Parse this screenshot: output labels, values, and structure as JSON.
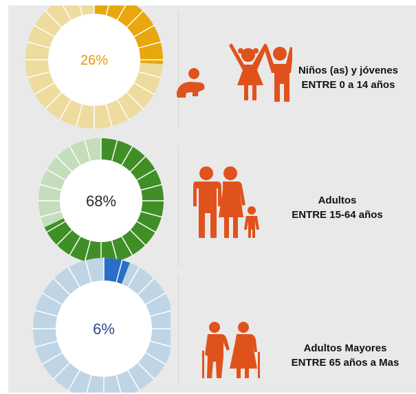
{
  "chart_data": [
    {
      "type": "pie",
      "name": "Niños (as) y jóvenes",
      "value": 26,
      "value_label": "26%",
      "label_line1": "Niños (as) y jóvenes",
      "label_line2": "ENTRE 0 a 14 años",
      "color_fill": "#e8a70c",
      "color_track": "#eedb9e",
      "label_color": "#e09a14",
      "icon": "children-family-icon"
    },
    {
      "type": "pie",
      "name": "Adultos",
      "value": 68,
      "value_label": "68%",
      "label_line1": "Adultos",
      "label_line2": "ENTRE 15-64 años",
      "color_fill": "#3f8f26",
      "color_track": "#c4ddbb",
      "label_color": "#2a2a2a",
      "icon": "adults-family-icon"
    },
    {
      "type": "pie",
      "name": "Adultos Mayores",
      "value": 6,
      "value_label": "6%",
      "label_line1": "Adultos Mayores",
      "label_line2": "ENTRE 65 años a Mas",
      "color_fill": "#2a6ec8",
      "color_track": "#bfd5e5",
      "label_color": "#2c4a8c",
      "icon": "elderly-couple-icon"
    }
  ],
  "icon_color": "#e0521c"
}
